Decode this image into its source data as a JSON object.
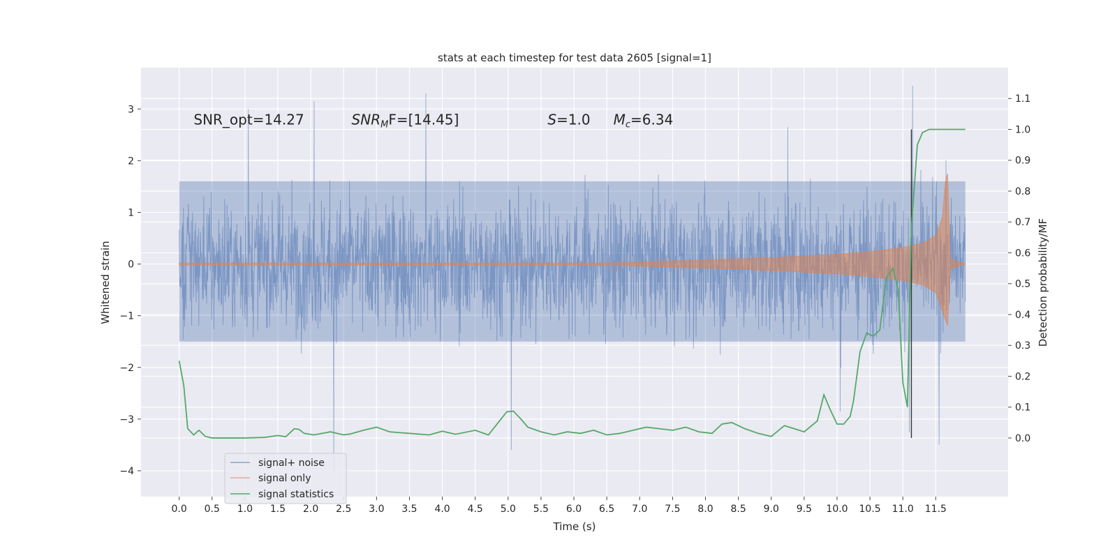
{
  "chart_data": {
    "type": "line",
    "title": "stats at each timestep for test data 2605 [signal=1]",
    "xlabel": "Time (s)",
    "ylabel_left": "Whitened strain",
    "ylabel_right": "Detection probability/MF",
    "xlim": [
      -0.58,
      12.6
    ],
    "ylim_left": [
      -4.5,
      3.8
    ],
    "ylim_right": [
      -0.19,
      1.2
    ],
    "x_ticks": [
      "0.0",
      "0.5",
      "1.0",
      "1.5",
      "2.0",
      "2.5",
      "3.0",
      "3.5",
      "4.0",
      "4.5",
      "5.0",
      "5.5",
      "6.0",
      "6.5",
      "7.0",
      "7.5",
      "8.0",
      "8.5",
      "9.0",
      "9.5",
      "10.0",
      "10.5",
      "11.0",
      "11.5"
    ],
    "y_ticks_left": [
      "3",
      "2",
      "1",
      "0",
      "−1",
      "−2",
      "−3",
      "−4"
    ],
    "y_ticks_right": [
      "1.1",
      "1.0",
      "0.9",
      "0.8",
      "0.7",
      "0.6",
      "0.5",
      "0.4",
      "0.3",
      "0.2",
      "0.1",
      "0.0"
    ],
    "grid": true,
    "legend_position": "lower-left",
    "annotations": [
      {
        "text": "SNR_opt=14.27",
        "x": 0.22,
        "y": 2.7
      },
      {
        "math": "SNR",
        "sub": "M",
        "rest": "F=[14.45]",
        "x": 2.62,
        "y": 2.7
      },
      {
        "math": "S",
        "rest": "=1.0",
        "x": 5.6,
        "y": 2.7
      },
      {
        "math": "M",
        "sub": "c",
        "rest": "=6.34",
        "x": 6.6,
        "y": 2.7
      }
    ],
    "vline_x": 11.13,
    "series": [
      {
        "name": "signal+ noise",
        "color": "#4c72b0",
        "opacity": 0.55,
        "time_range": [
          0.0,
          11.95
        ],
        "typical_range": [
          -1.5,
          1.6
        ],
        "extremes": [
          {
            "x": 1.05,
            "y": 3.0
          },
          {
            "x": 2.05,
            "y": 3.15
          },
          {
            "x": 2.35,
            "y": -4.05
          },
          {
            "x": 3.75,
            "y": 3.3
          },
          {
            "x": 5.05,
            "y": -3.6
          },
          {
            "x": 9.25,
            "y": 2.65
          },
          {
            "x": 10.05,
            "y": -2.85
          },
          {
            "x": 11.1,
            "y": -3.25
          },
          {
            "x": 11.15,
            "y": 3.45
          },
          {
            "x": 11.55,
            "y": -3.5
          }
        ]
      },
      {
        "name": "signal only",
        "color": "#dd8452",
        "opacity": 0.55,
        "envelope_x": [
          0.0,
          6.5,
          7.0,
          8.0,
          9.0,
          10.0,
          10.5,
          11.0,
          11.3,
          11.5,
          11.6,
          11.65,
          11.68,
          11.72,
          11.95
        ],
        "envelope_amp": [
          0.02,
          0.02,
          0.04,
          0.08,
          0.12,
          0.19,
          0.24,
          0.32,
          0.4,
          0.55,
          0.9,
          1.6,
          1.75,
          0.1,
          0.0
        ]
      },
      {
        "name": "signal statistics",
        "color": "#55a868",
        "axis": "right",
        "x": [
          0.0,
          0.07,
          0.13,
          0.22,
          0.3,
          0.4,
          0.5,
          0.7,
          1.0,
          1.3,
          1.5,
          1.62,
          1.75,
          1.82,
          1.9,
          2.05,
          2.3,
          2.5,
          2.6,
          2.8,
          3.0,
          3.2,
          3.5,
          3.8,
          4.0,
          4.2,
          4.5,
          4.7,
          4.85,
          4.98,
          5.08,
          5.2,
          5.3,
          5.5,
          5.7,
          5.9,
          6.1,
          6.3,
          6.5,
          6.7,
          6.9,
          7.1,
          7.3,
          7.5,
          7.7,
          7.9,
          8.1,
          8.25,
          8.4,
          8.6,
          8.8,
          9.0,
          9.2,
          9.35,
          9.5,
          9.7,
          9.8,
          9.9,
          10.0,
          10.1,
          10.2,
          10.25,
          10.35,
          10.45,
          10.55,
          10.65,
          10.75,
          10.85,
          10.93,
          11.0,
          11.07,
          11.13,
          11.22,
          11.3,
          11.4,
          11.95
        ],
        "y": [
          0.25,
          0.17,
          0.03,
          0.01,
          0.025,
          0.005,
          0.0,
          0.0,
          0.0,
          0.002,
          0.008,
          0.004,
          0.03,
          0.028,
          0.015,
          0.01,
          0.02,
          0.01,
          0.013,
          0.025,
          0.035,
          0.02,
          0.015,
          0.01,
          0.022,
          0.012,
          0.025,
          0.01,
          0.05,
          0.085,
          0.087,
          0.06,
          0.035,
          0.02,
          0.01,
          0.02,
          0.015,
          0.025,
          0.01,
          0.015,
          0.025,
          0.035,
          0.03,
          0.025,
          0.035,
          0.02,
          0.015,
          0.045,
          0.05,
          0.03,
          0.015,
          0.005,
          0.04,
          0.03,
          0.02,
          0.055,
          0.14,
          0.09,
          0.045,
          0.045,
          0.07,
          0.12,
          0.28,
          0.34,
          0.33,
          0.35,
          0.52,
          0.55,
          0.48,
          0.18,
          0.1,
          0.68,
          0.95,
          0.99,
          1.0,
          1.0
        ]
      }
    ]
  }
}
